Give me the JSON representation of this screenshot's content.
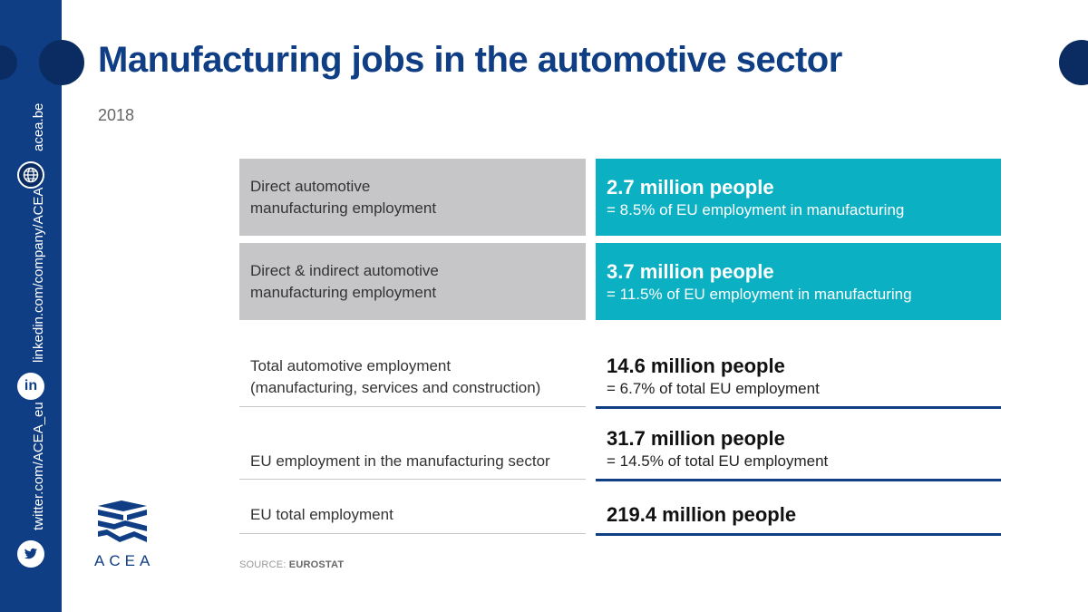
{
  "header": {
    "title": "Manufacturing jobs in the automotive sector",
    "year": "2018"
  },
  "sidebar": {
    "website": "acea.be",
    "linkedin": "linkedin.com/company/ACEA",
    "twitter": "twitter.com/ACEA_eu",
    "icons": [
      "globe-icon",
      "linkedin-icon",
      "twitter-icon"
    ]
  },
  "rows": [
    {
      "label_line1": "Direct automotive",
      "label_line2": "manufacturing employment",
      "value": "2.7 million people",
      "note": "= 8.5% of EU employment in manufacturing"
    },
    {
      "label_line1": "Direct & indirect automotive",
      "label_line2": "manufacturing employment",
      "value": "3.7 million people",
      "note": "= 11.5% of EU employment in manufacturing"
    },
    {
      "label_line1": "Total automotive employment",
      "label_line2": "(manufacturing, services and construction)",
      "value": "14.6 million people",
      "note": "= 6.7% of total EU employment"
    },
    {
      "label_line1": "EU employment in the manufacturing sector",
      "value": "31.7 million people",
      "note": "= 14.5% of total EU employment"
    },
    {
      "label_line1": "EU total employment",
      "value": "219.4 million people"
    }
  ],
  "source": {
    "prefix": "SOURCE:",
    "name": "EUROSTAT"
  },
  "logo": {
    "text": "ACEA"
  },
  "colors": {
    "brand_blue": "#0f3e85",
    "teal": "#0bb0c3",
    "grey": "#c6c6c8"
  }
}
